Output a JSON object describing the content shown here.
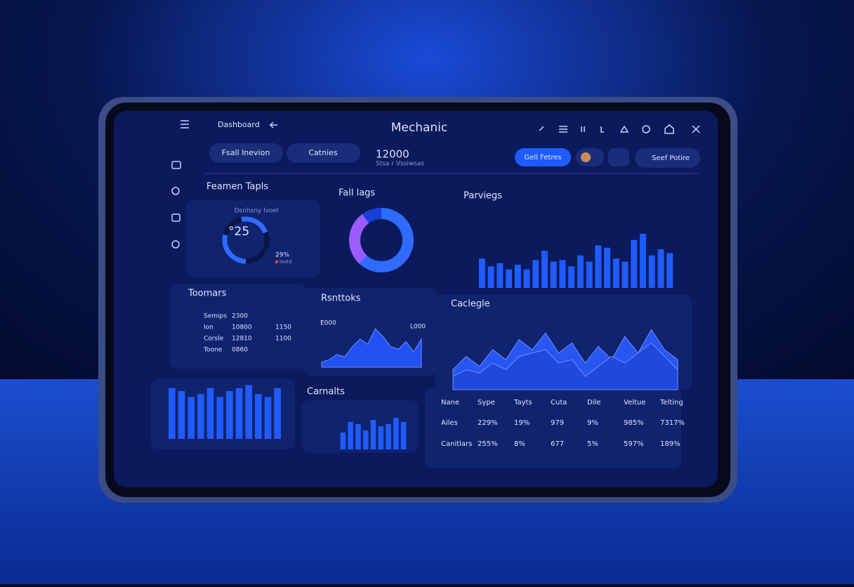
{
  "header": {
    "menu": "Dashboard",
    "title": "Mechanic",
    "tabs": [
      "Fsall Inevion",
      "Catnies"
    ],
    "stat": "12000",
    "stat_note": "Stsa r Vssiwsas",
    "buttons": [
      "Gell Fetres",
      "Seef Potire"
    ]
  },
  "widgets": {
    "gauge": {
      "title": "Feamen Tapls",
      "label": "Dsnhsny lvoel",
      "value_text": "°25",
      "value": 29,
      "value_label": "29%",
      "legend": "Ieotd",
      "color": "#2f6bff"
    },
    "donut": {
      "type": "donut",
      "title": "Fall lags",
      "values": [
        62,
        28,
        10
      ],
      "colors": [
        "#2f6bff",
        "#9a5cff",
        "#1a3fd8"
      ]
    },
    "bars_top": {
      "type": "bar",
      "title": "Parviegs",
      "values": [
        38,
        28,
        32,
        24,
        30,
        24,
        36,
        48,
        34,
        36,
        28,
        42,
        34,
        55,
        52,
        38,
        34,
        62,
        70,
        42,
        50,
        45
      ],
      "ylim": [
        0,
        100
      ],
      "color": "#1f5cff"
    },
    "list": {
      "title": "Toomars",
      "rows": [
        [
          "Semips",
          "2300",
          ""
        ],
        [
          "Ion",
          "10800",
          "1150"
        ],
        [
          "Corsle",
          "12810",
          "1100"
        ],
        [
          "Toone",
          "0860",
          ""
        ]
      ]
    },
    "area_small": {
      "type": "area",
      "title": "Rsnttoks",
      "labels": [
        "E000",
        "L000"
      ],
      "values": [
        10,
        15,
        25,
        20,
        40,
        55,
        45,
        75,
        60,
        40,
        35,
        50,
        30,
        55
      ],
      "ylim": [
        0,
        100
      ],
      "color": "#2458ff"
    },
    "area_big": {
      "type": "area",
      "title": "Caclegle",
      "series": [
        {
          "color": "#2a5cff",
          "values": [
            30,
            50,
            35,
            60,
            45,
            75,
            60,
            85,
            55,
            70,
            40,
            65,
            45,
            80,
            55,
            90,
            60,
            45
          ]
        },
        {
          "color": "#1a3fd0",
          "values": [
            20,
            30,
            25,
            40,
            30,
            50,
            55,
            60,
            40,
            45,
            20,
            35,
            50,
            40,
            55,
            70,
            50,
            30
          ]
        }
      ],
      "ylim": [
        0,
        100
      ]
    },
    "bars_bottom": {
      "type": "bar",
      "values": [
        85,
        80,
        70,
        75,
        85,
        70,
        80,
        85,
        90,
        75,
        70,
        85
      ],
      "ylim": [
        0,
        100
      ],
      "color": "#1f5cff"
    },
    "bars_small": {
      "type": "bar",
      "title": "Carnalts",
      "values": [
        40,
        65,
        60,
        45,
        70,
        55,
        60,
        75,
        65
      ],
      "ylim": [
        0,
        100
      ],
      "color": "#1f5cff"
    },
    "table": {
      "columns": [
        "Nane",
        "Sype",
        "Tayts",
        "Cuta",
        "Dile",
        "Veltue",
        "Telting"
      ],
      "rows": [
        [
          "Ailes",
          "229%",
          "19%",
          "979",
          "9%",
          "985%",
          "7317%"
        ],
        [
          "Canitlars",
          "255%",
          "8%",
          "677",
          "5%",
          "597%",
          "189%"
        ]
      ]
    }
  }
}
